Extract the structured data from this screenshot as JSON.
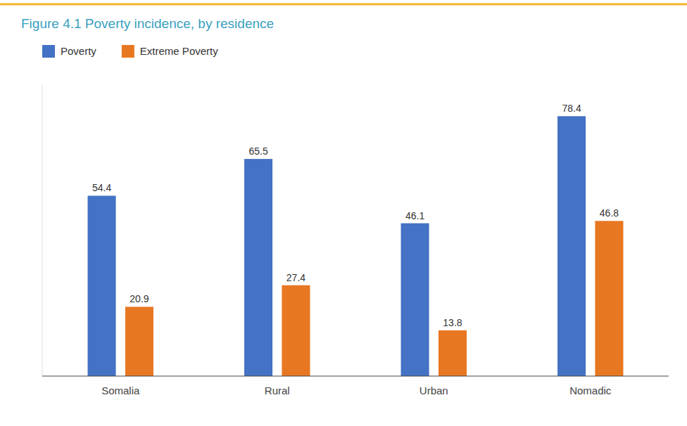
{
  "chart_data": {
    "type": "bar",
    "title": "Figure 4.1 Poverty incidence, by residence",
    "categories": [
      "Somalia",
      "Rural",
      "Urban",
      "Nomadic"
    ],
    "series": [
      {
        "name": "Poverty",
        "color": "#4472C4",
        "values": [
          54.4,
          65.5,
          46.1,
          78.4
        ]
      },
      {
        "name": "Extreme Poverty",
        "color": "#E87722",
        "values": [
          20.9,
          27.4,
          13.8,
          46.8
        ]
      }
    ],
    "ylim": [
      0,
      88
    ],
    "grid": false,
    "legend": "upper left",
    "data_labels": true,
    "tick_labels": "x"
  }
}
